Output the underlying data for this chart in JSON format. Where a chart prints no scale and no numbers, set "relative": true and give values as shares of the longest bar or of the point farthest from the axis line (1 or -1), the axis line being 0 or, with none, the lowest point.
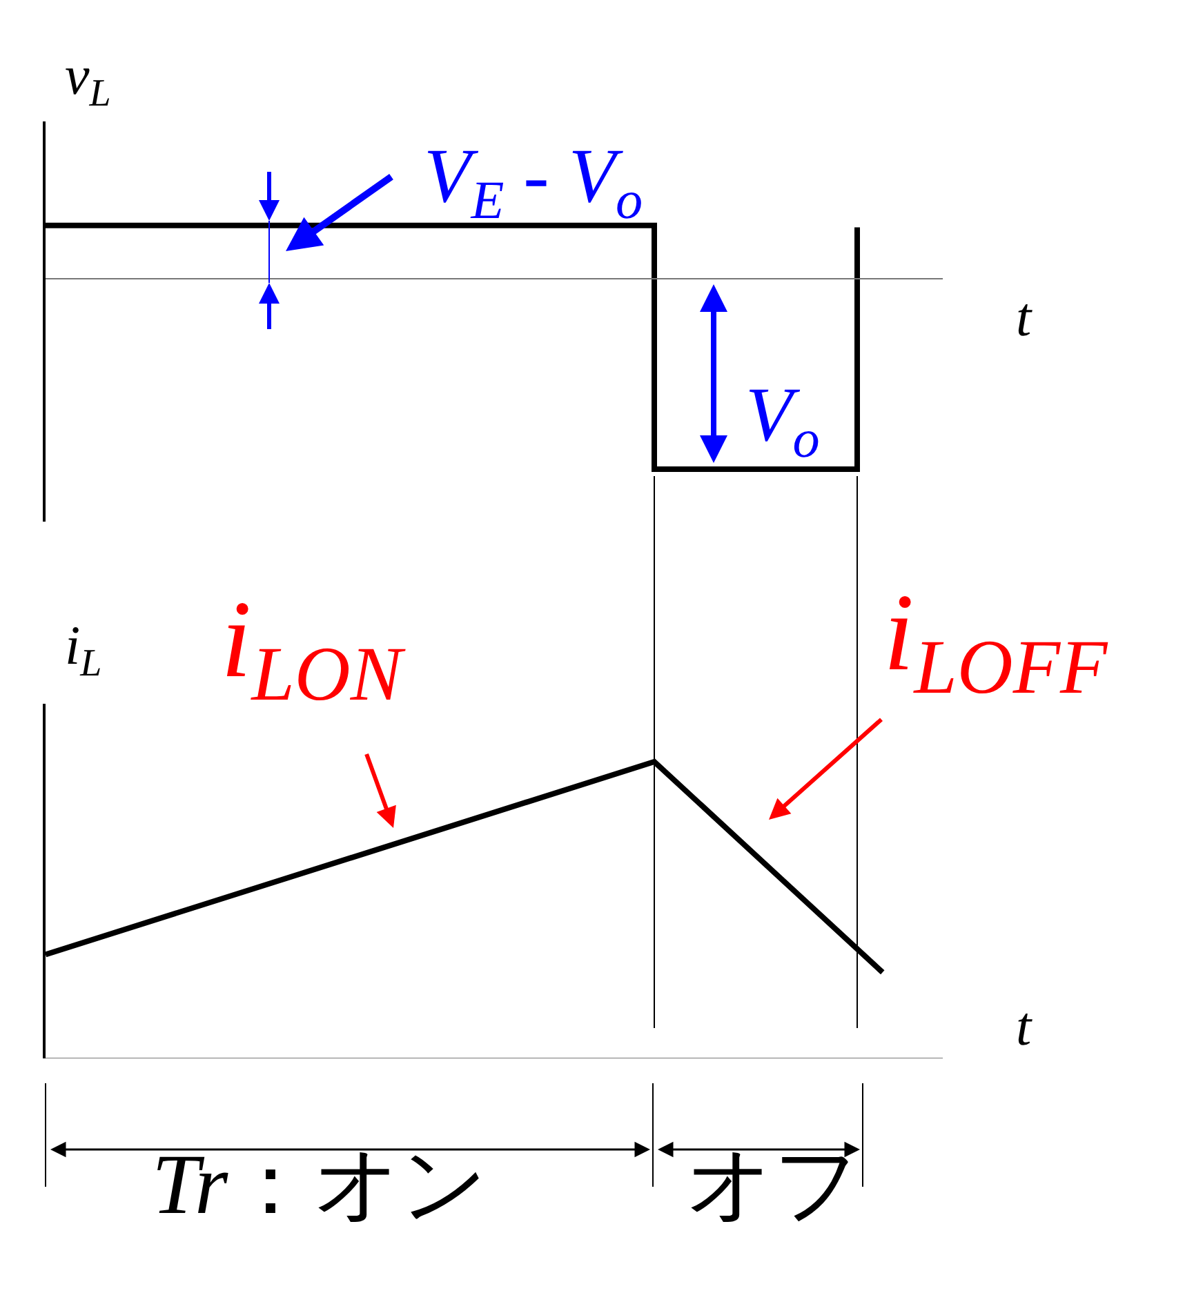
{
  "chart_data": [
    {
      "type": "step",
      "relative": true,
      "ylabel": "v$_{L}$",
      "xlabel": "t",
      "categories": [
        null,
        null,
        null,
        null,
        null,
        null,
        null,
        null,
        null,
        null,
        null,
        null,
        null,
        null,
        null,
        null,
        null,
        null,
        null,
        null,
        null,
        null,
        null,
        null,
        null,
        null,
        null,
        null,
        null,
        null,
        null,
        null,
        null,
        null
      ],
      "series": [
        {
          "color": "#000000",
          "values": [
            0.28,
            null,
            null,
            null,
            null,
            null,
            null,
            null,
            null,
            null,
            null,
            null,
            null,
            null,
            null,
            null,
            null,
            null,
            null,
            null,
            null,
            null,
            null,
            null,
            -1,
            null,
            null,
            null,
            null,
            null,
            null,
            null,
            0.27,
            null
          ]
        }
      ],
      "annotations": [
        "V$_{E}$ - V$_{o}$",
        "V$_{o}$"
      ]
    },
    {
      "type": "line",
      "relative": true,
      "ylabel": "i$_{L}$",
      "xlabel": "t",
      "categories": [
        null,
        null,
        null,
        null,
        null,
        null,
        null,
        null,
        null,
        null,
        null,
        null,
        null,
        null,
        null,
        null,
        null,
        null,
        null,
        null,
        null,
        null,
        null,
        null,
        null,
        null,
        null,
        null,
        null,
        null,
        null,
        null,
        null,
        null
      ],
      "series": [
        {
          "color": "#000000",
          "values": [
            0.35,
            null,
            null,
            null,
            null,
            null,
            null,
            null,
            null,
            null,
            null,
            null,
            null,
            null,
            null,
            null,
            null,
            null,
            null,
            null,
            null,
            null,
            null,
            null,
            1,
            null,
            null,
            null,
            null,
            null,
            null,
            null,
            null,
            0.29
          ]
        }
      ],
      "annotations": [
        "i$_{LON}$",
        "i$_{LOFF}$",
        "Tr：オン",
        "オフ"
      ]
    }
  ]
}
